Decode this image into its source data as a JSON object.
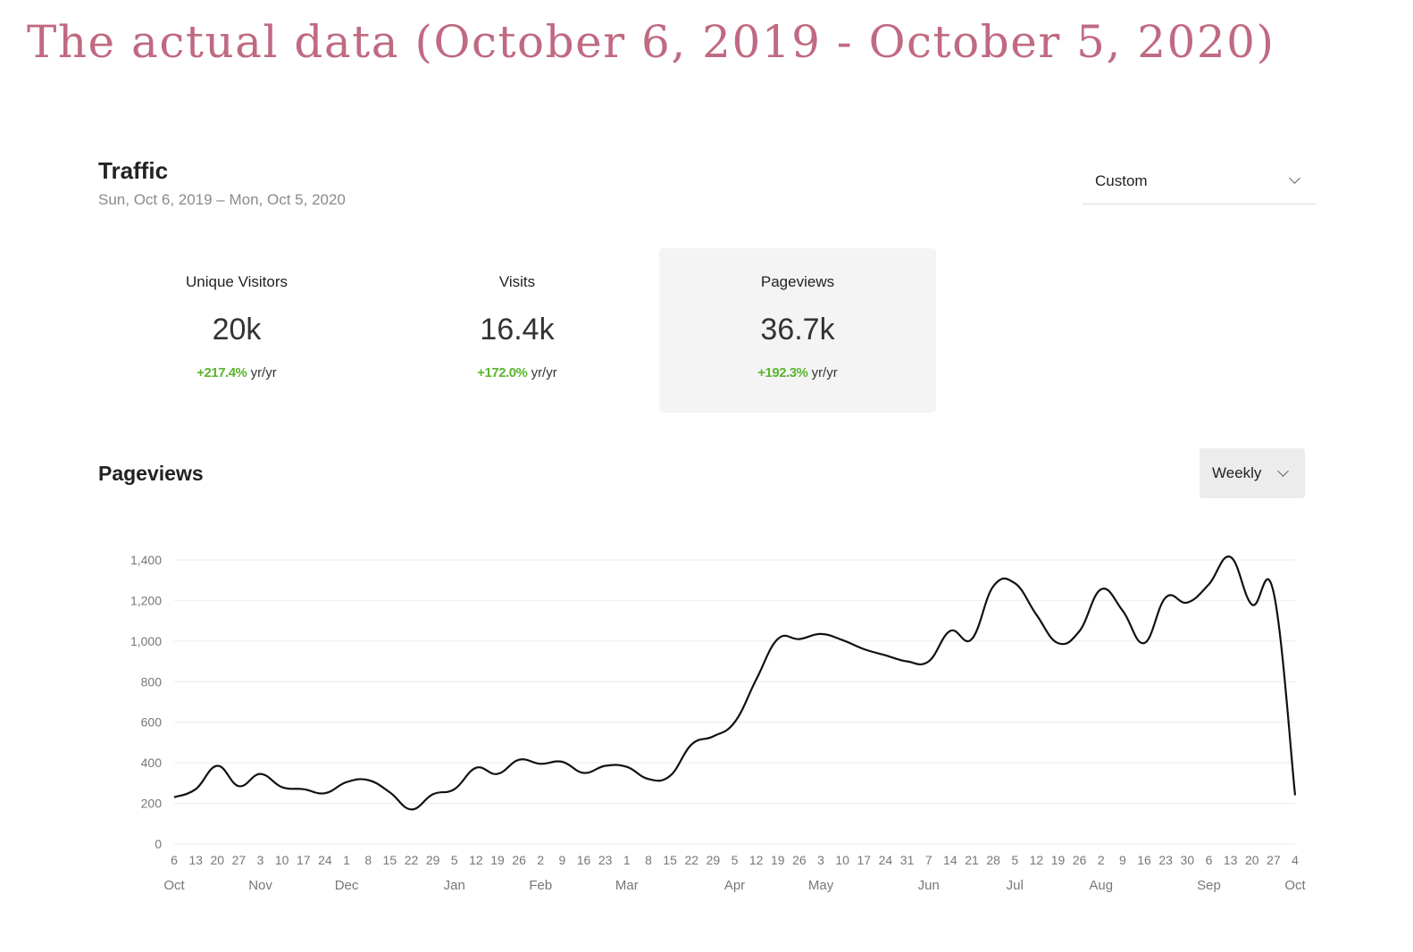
{
  "headline": "The actual data (October 6, 2019 - October 5, 2020)",
  "traffic": {
    "title": "Traffic",
    "date_range": "Sun, Oct 6, 2019 – Mon, Oct 5, 2020",
    "range_select": "Custom"
  },
  "stats": [
    {
      "label": "Unique Visitors",
      "value": "20k",
      "change": "+217.4%",
      "unit": "yr/yr",
      "selected": false
    },
    {
      "label": "Visits",
      "value": "16.4k",
      "change": "+172.0%",
      "unit": "yr/yr",
      "selected": false
    },
    {
      "label": "Pageviews",
      "value": "36.7k",
      "change": "+192.3%",
      "unit": "yr/yr",
      "selected": true
    }
  ],
  "pageviews_section": {
    "title": "Pageviews",
    "period_select": "Weekly"
  },
  "colors": {
    "headline": "#c06a82",
    "positive_change": "#5ab52e",
    "line": "#111111",
    "grid": "#ececec"
  },
  "icons": [
    "chevron-down-icon"
  ],
  "chart_data": {
    "type": "line",
    "title": "",
    "xlabel": "",
    "ylabel": "",
    "ylim": [
      0,
      1400
    ],
    "y_ticks": [
      0,
      200,
      400,
      600,
      800,
      1000,
      1200,
      1400
    ],
    "y_tick_labels": [
      "0",
      "200",
      "400",
      "600",
      "800",
      "1,000",
      "1,200",
      "1,400"
    ],
    "grid": true,
    "legend": "none",
    "x_tick_labels": [
      "6",
      "13",
      "20",
      "27",
      "3",
      "10",
      "17",
      "24",
      "1",
      "8",
      "15",
      "22",
      "29",
      "5",
      "12",
      "19",
      "26",
      "2",
      "9",
      "16",
      "23",
      "1",
      "8",
      "15",
      "22",
      "29",
      "5",
      "12",
      "19",
      "26",
      "3",
      "10",
      "17",
      "24",
      "31",
      "7",
      "14",
      "21",
      "28",
      "5",
      "12",
      "19",
      "26",
      "2",
      "9",
      "16",
      "23",
      "30",
      "6",
      "13",
      "20",
      "27",
      "4"
    ],
    "month_labels": [
      {
        "label": "Oct",
        "tick_index": 0
      },
      {
        "label": "Nov",
        "tick_index": 4
      },
      {
        "label": "Dec",
        "tick_index": 8
      },
      {
        "label": "Jan",
        "tick_index": 13
      },
      {
        "label": "Feb",
        "tick_index": 17
      },
      {
        "label": "Mar",
        "tick_index": 21
      },
      {
        "label": "Apr",
        "tick_index": 26
      },
      {
        "label": "May",
        "tick_index": 30
      },
      {
        "label": "Jun",
        "tick_index": 35
      },
      {
        "label": "Jul",
        "tick_index": 39
      },
      {
        "label": "Aug",
        "tick_index": 43
      },
      {
        "label": "Sep",
        "tick_index": 48
      },
      {
        "label": "Oct",
        "tick_index": 52
      }
    ],
    "series": [
      {
        "values": [
          230,
          270,
          385,
          285,
          345,
          280,
          270,
          250,
          305,
          315,
          255,
          170,
          245,
          270,
          375,
          345,
          415,
          395,
          405,
          350,
          385,
          380,
          320,
          335,
          490,
          530,
          600,
          810,
          1010,
          1010,
          1035,
          1005,
          960,
          930,
          900,
          900,
          1050,
          1010,
          1270,
          1285,
          1130,
          990,
          1050,
          1255,
          1150,
          990,
          1215,
          1190,
          1280,
          1415,
          1180,
          1240,
          240
        ]
      }
    ]
  }
}
